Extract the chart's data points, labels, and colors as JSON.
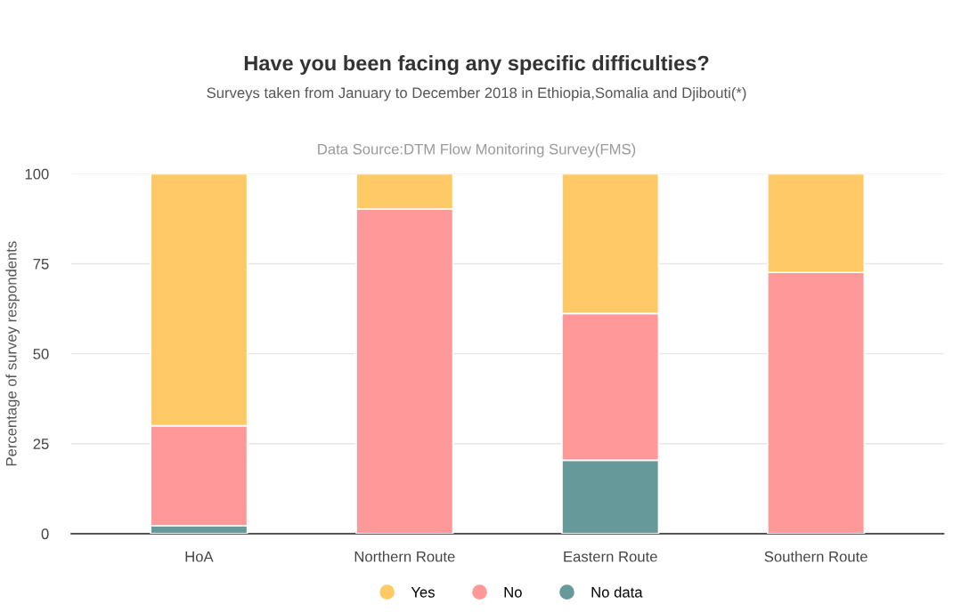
{
  "chart_data": {
    "type": "bar",
    "stacked": true,
    "title": "Have you been facing any specific difficulties?",
    "subtitle": "Surveys taken from January to December 2018 in Ethiopia,Somalia and Djibouti(*)",
    "annotations": [
      "Data Source:DTM Flow Monitoring Survey(FMS)"
    ],
    "ylabel": "Percentage of survey respondents",
    "categories": [
      "HoA",
      "Northern Route",
      "Eastern Route",
      "Southern Route"
    ],
    "series": [
      {
        "name": "No data",
        "color": "#669999",
        "values": [
          2.2,
          0,
          20.4,
          0
        ]
      },
      {
        "name": "No",
        "color": "#ff9999",
        "values": [
          27.8,
          90.2,
          40.8,
          72.6
        ]
      },
      {
        "name": "Yes",
        "color": "#ffca66",
        "values": [
          70,
          9.8,
          38.8,
          27.4
        ]
      }
    ],
    "ylim": [
      0,
      100
    ],
    "yticks": [
      0,
      25,
      50,
      75,
      100
    ],
    "grid": "y",
    "legend": "bottom"
  }
}
